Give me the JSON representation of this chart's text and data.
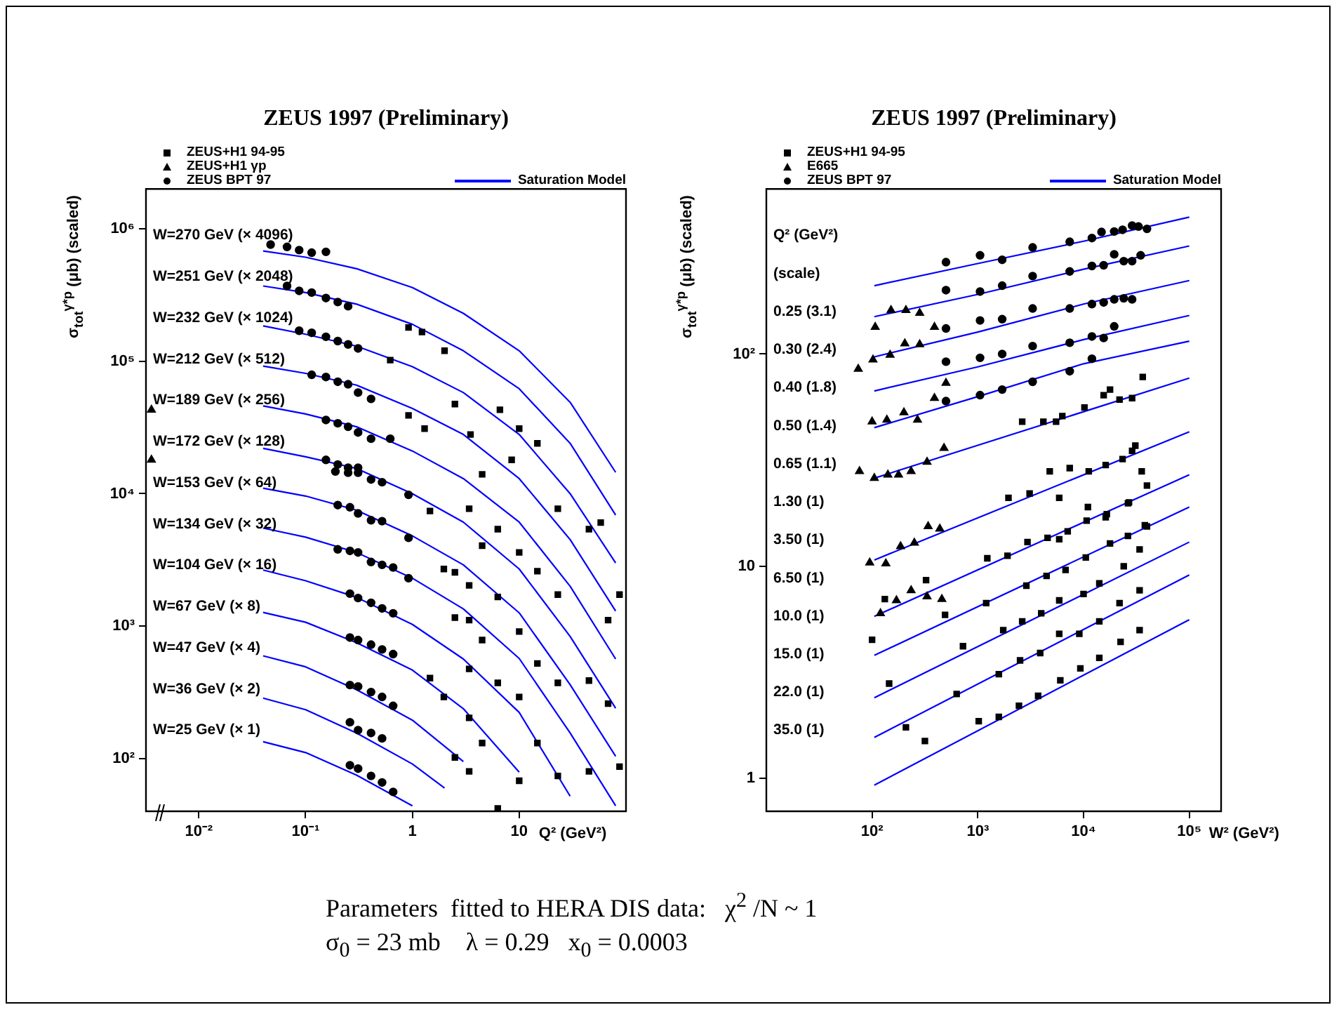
{
  "chart_data": [
    {
      "type": "scatter",
      "title": "ZEUS 1997 (Preliminary)",
      "xlabel": "Q² (GeV²)",
      "ylabel": "σ$_{tot}$$^{γ*p}$ (μb) (scaled)",
      "log": "xy",
      "legend": "top",
      "xlim": [
        0.0032,
        100
      ],
      "ylim": [
        40,
        2000000
      ],
      "xticks": [
        {
          "value": 0.01,
          "label": "10⁻²"
        },
        {
          "value": 0.1,
          "label": "10⁻¹"
        },
        1,
        10
      ],
      "yticks": [
        {
          "value": 100,
          "label": "10²"
        },
        {
          "value": 1000,
          "label": "10³"
        },
        {
          "value": 10000,
          "label": "10⁴"
        },
        {
          "value": 100000,
          "label": "10⁵"
        },
        {
          "value": 1000000,
          "label": "10⁶"
        }
      ],
      "annotations": [
        "W=270 GeV (× 4096)",
        "W=251 GeV (× 2048)",
        "W=232 GeV (× 1024)",
        "W=212 GeV (× 512)",
        "W=189 GeV (× 256)",
        "W=172 GeV (× 128)",
        "W=153 GeV (× 64)",
        "W=134 GeV (× 32)",
        "W=104 GeV (× 16)",
        "W=67 GeV (× 8)",
        "W=47 GeV (× 4)",
        "W=36 GeV (× 2)",
        "W=25 GeV (× 1)"
      ],
      "series": [
        {
          "type": "scatter",
          "name": "ZEUS+H1 94-95",
          "color": "#000000",
          "marker": "square",
          "x": [
            1.46,
            1.97,
            2.5,
            2.5,
            1.46,
            1.97,
            2.5,
            3.4,
            3.4,
            3.4,
            3.4,
            3.4,
            3.4,
            4.5,
            4.5,
            4.5,
            4.5,
            6.3,
            6.3,
            6.3,
            6.3,
            10,
            10,
            10,
            10,
            14.8,
            14.8,
            14.8,
            23,
            23,
            23,
            23,
            45,
            45,
            45,
            58,
            68,
            68,
            87,
            87,
            0.92,
            1.23,
            2,
            0.62,
            0.92,
            1.3,
            2.5,
            3.5,
            6.6,
            10,
            14.8,
            8.5
          ],
          "values": [
            7400,
            2700,
            2550,
            1160,
            405,
            292,
            102,
            80,
            203,
            475,
            1110,
            2030,
            7700,
            14000,
            4050,
            785,
            131,
            373,
            1660,
            5400,
            42,
            292,
            910,
            3600,
            68,
            2600,
            523,
            131,
            7700,
            1730,
            373,
            74,
            5400,
            388,
            80,
            6050,
            1110,
            260,
            1730,
            87,
            180000,
            166000,
            120000,
            102000,
            39000,
            31000,
            47500,
            28000,
            43000,
            31000,
            24000,
            18000
          ]
        },
        {
          "type": "scatter",
          "name": "ZEUS+H1 γp",
          "color": "#000000",
          "marker": "triangle",
          "x": [
            0.0036,
            0.0036
          ],
          "values": [
            43000,
            18000
          ]
        },
        {
          "type": "scatter",
          "name": "ZEUS BPT 97",
          "color": "#000000",
          "marker": "circle",
          "x": [
            0.047,
            0.067,
            0.087,
            0.114,
            0.155,
            0.067,
            0.087,
            0.114,
            0.155,
            0.2,
            0.25,
            0.087,
            0.114,
            0.155,
            0.2,
            0.25,
            0.31,
            0.114,
            0.155,
            0.2,
            0.25,
            0.31,
            0.41,
            0.155,
            0.2,
            0.25,
            0.31,
            0.41,
            0.62,
            0.155,
            0.2,
            0.25,
            0.31,
            0.19,
            0.25,
            0.31,
            0.41,
            0.52,
            0.2,
            0.26,
            0.31,
            0.41,
            0.52,
            0.2,
            0.26,
            0.31,
            0.41,
            0.52,
            0.66,
            0.26,
            0.31,
            0.41,
            0.52,
            0.66,
            0.26,
            0.31,
            0.41,
            0.52,
            0.66,
            0.26,
            0.31,
            0.41,
            0.52,
            0.66,
            0.26,
            0.31,
            0.41,
            0.52,
            0.26,
            0.31,
            0.41,
            0.52,
            0.66,
            0.92,
            0.92,
            0.92
          ],
          "values": [
            760000,
            730000,
            690000,
            660000,
            670000,
            370000,
            340000,
            330000,
            300000,
            280000,
            260000,
            170000,
            164000,
            153000,
            142000,
            134000,
            125000,
            79000,
            76000,
            70000,
            67000,
            58000,
            52000,
            36000,
            34000,
            32000,
            29000,
            26000,
            26000,
            18000,
            16600,
            15700,
            15700,
            14700,
            14400,
            14400,
            12800,
            12200,
            8200,
            7900,
            7100,
            6300,
            6200,
            3800,
            3700,
            3600,
            3050,
            2900,
            2770,
            1760,
            1630,
            1500,
            1360,
            1250,
            820,
            785,
            725,
            667,
            615,
            359,
            350,
            318,
            292,
            250,
            188,
            164,
            156,
            142,
            89,
            84,
            74,
            66,
            56,
            9800,
            4640,
            2300
          ]
        },
        {
          "type": "line",
          "name": "Saturation Model",
          "color": "#0000ff",
          "marker": "none",
          "x": [
            0.04,
            0.1,
            0.3,
            1,
            3,
            10,
            30,
            80
          ],
          "values": [
            680000,
            610000,
            500000,
            360000,
            230000,
            120000,
            49000,
            14500
          ]
        },
        {
          "type": "line",
          "color": "#0000ff",
          "marker": "none",
          "x": [
            0.04,
            0.1,
            0.3,
            1,
            3,
            10,
            30,
            80
          ],
          "values": [
            370000,
            330000,
            270000,
            190000,
            120000,
            62000,
            24000,
            6900
          ]
        },
        {
          "type": "line",
          "color": "#0000ff",
          "marker": "none",
          "x": [
            0.04,
            0.1,
            0.3,
            1,
            3,
            10,
            30,
            80
          ],
          "values": [
            185000,
            160000,
            130000,
            91000,
            58000,
            28000,
            10000,
            3000
          ]
        },
        {
          "type": "line",
          "color": "#0000ff",
          "marker": "none",
          "x": [
            0.04,
            0.1,
            0.3,
            1,
            3,
            10,
            30,
            80
          ],
          "values": [
            92000,
            81000,
            66000,
            44000,
            28000,
            13000,
            4500,
            1300
          ]
        },
        {
          "type": "line",
          "color": "#0000ff",
          "marker": "none",
          "x": [
            0.04,
            0.1,
            0.3,
            1,
            3,
            10,
            30,
            80
          ],
          "values": [
            46000,
            40000,
            32000,
            21000,
            13000,
            6100,
            2000,
            565
          ]
        },
        {
          "type": "line",
          "color": "#0000ff",
          "marker": "none",
          "x": [
            0.04,
            0.1,
            0.3,
            1,
            3,
            10,
            30,
            80
          ],
          "values": [
            22000,
            19000,
            15500,
            10000,
            6100,
            2700,
            836,
            240
          ]
        },
        {
          "type": "line",
          "color": "#0000ff",
          "marker": "none",
          "x": [
            0.04,
            0.1,
            0.3,
            1,
            3,
            10,
            30,
            80
          ],
          "values": [
            11000,
            9600,
            7500,
            4800,
            2900,
            1260,
            361,
            104
          ]
        },
        {
          "type": "line",
          "color": "#0000ff",
          "marker": "none",
          "x": [
            0.04,
            0.1,
            0.3,
            1,
            3,
            10,
            30,
            80
          ],
          "values": [
            5500,
            4700,
            3600,
            2300,
            1350,
            570,
            156,
            44
          ]
        },
        {
          "type": "line",
          "color": "#0000ff",
          "marker": "none",
          "x": [
            0.04,
            0.1,
            0.3,
            1,
            3,
            10,
            30
          ],
          "values": [
            2650,
            2200,
            1650,
            1030,
            565,
            223,
            52
          ]
        },
        {
          "type": "line",
          "color": "#0000ff",
          "marker": "none",
          "x": [
            0.04,
            0.1,
            0.3,
            1,
            3,
            10
          ],
          "values": [
            1270,
            1070,
            750,
            466,
            238,
            79
          ]
        },
        {
          "type": "line",
          "color": "#0000ff",
          "marker": "none",
          "x": [
            0.04,
            0.1,
            0.3,
            1,
            3
          ],
          "values": [
            597,
            493,
            331,
            195,
            95
          ]
        },
        {
          "type": "line",
          "color": "#0000ff",
          "marker": "none",
          "x": [
            0.04,
            0.1,
            0.3,
            1,
            2
          ],
          "values": [
            286,
            234,
            156,
            91,
            60
          ]
        },
        {
          "type": "line",
          "color": "#0000ff",
          "marker": "none",
          "x": [
            0.04,
            0.1,
            0.3,
            1
          ],
          "values": [
            134,
            111,
            75,
            44
          ]
        }
      ]
    },
    {
      "type": "scatter",
      "title": "ZEUS 1997 (Preliminary)",
      "xlabel": "W² (GeV²)",
      "ylabel": "σ$_{tot}$$^{γ*p}$ (μb) (scaled)",
      "log": "xy",
      "legend": "top",
      "xlim": [
        10,
        200000
      ],
      "ylim": [
        0.7,
        600
      ],
      "xticks": [
        {
          "value": 100,
          "label": "10²"
        },
        {
          "value": 1000,
          "label": "10³"
        },
        {
          "value": 10000,
          "label": "10⁴"
        },
        {
          "value": 100000,
          "label": "10⁵"
        }
      ],
      "yticks": [
        1,
        10,
        {
          "value": 100,
          "label": "10²"
        }
      ],
      "annotations": [
        "Q² (GeV²)",
        "(scale)",
        "0.25 (3.1)",
        "0.30 (2.4)",
        "0.40 (1.8)",
        "0.50 (1.4)",
        "0.65 (1.1)",
        "1.30 (1)",
        "3.50 (1)",
        "6.50 (1)",
        "10.0 (1)",
        "15.0 (1)",
        "22.0 (1)",
        "35.0 (1)"
      ],
      "series": [
        {
          "type": "scatter",
          "name": "ZEUS+H1 94-95",
          "color": "#000000",
          "marker": "square",
          "x": [
            2630,
            4170,
            5500,
            6300,
            10200,
            15500,
            17800,
            21900,
            28800,
            36300,
            4790,
            7400,
            11200,
            16200,
            23400,
            28800,
            30900,
            35500,
            1950,
            3090,
            5890,
            11000,
            16200,
            26900,
            39800,
            1230,
            1910,
            2950,
            4570,
            5890,
            7080,
            10700,
            16600,
            26300,
            39800,
            132,
            324,
            490,
            1200,
            2880,
            4470,
            6760,
            10500,
            17800,
            26300,
            38000,
            100,
            724,
            1740,
            2630,
            3980,
            5890,
            10000,
            14100,
            24000,
            33900,
            145,
            631,
            1580,
            2510,
            3890,
            5890,
            9120,
            14100,
            21900,
            33900,
            209,
            316,
            1020,
            1580,
            2450,
            3720,
            6030,
            9330,
            14100,
            22400,
            33900
          ],
          "values": [
            48,
            48,
            48,
            51,
            56,
            64,
            68,
            61,
            62,
            78,
            28,
            29,
            28,
            30,
            32,
            35,
            37,
            28,
            21,
            22,
            21,
            19,
            17,
            20,
            24,
            10.9,
            11.2,
            13,
            13.6,
            13.4,
            14.6,
            16.4,
            17.6,
            19.8,
            15.4,
            7,
            8.6,
            5.9,
            6.7,
            8.1,
            9,
            9.6,
            11,
            12.8,
            13.9,
            15.6,
            4.5,
            4.2,
            5,
            5.5,
            6,
            6.9,
            7.4,
            8.3,
            10,
            12,
            2.8,
            2.5,
            3.1,
            3.6,
            3.9,
            4.8,
            4.8,
            5.5,
            6.7,
            7.7,
            1.74,
            1.5,
            1.86,
            1.95,
            2.2,
            2.45,
            2.9,
            3.3,
            3.7,
            4.4,
            5
          ]
        },
        {
          "type": "scatter",
          "name": "E665",
          "color": "#000000",
          "marker": "triangle",
          "x": [
            107,
            151,
            209,
            282,
            389,
            74,
            102,
            148,
            204,
            282,
            100,
            138,
            200,
            269,
            389,
            500,
            76,
            105,
            141,
            178,
            234,
            331,
            479,
            339,
            437,
            251,
            186,
            95,
            135,
            120,
            170,
            234,
            331,
            457
          ],
          "values": [
            134,
            161,
            161,
            156,
            134,
            85,
            94,
            99,
            112,
            111,
            48,
            49,
            53,
            49,
            62,
            73,
            28,
            26,
            27,
            27,
            28,
            31,
            36,
            15.4,
            15,
            12.9,
            12.4,
            10.4,
            10.3,
            6,
            6.9,
            7.7,
            7.2,
            7
          ]
        },
        {
          "type": "scatter",
          "name": "ZEUS BPT 97",
          "color": "#000000",
          "marker": "circle",
          "x": [
            500,
            1050,
            1700,
            3300,
            7400,
            12000,
            14800,
            19500,
            23400,
            28800,
            33100,
            39800,
            500,
            1050,
            1700,
            3300,
            7400,
            12000,
            15500,
            19500,
            24000,
            28800,
            34700,
            500,
            1050,
            1700,
            3300,
            7400,
            12000,
            15500,
            19500,
            24000,
            28800,
            500,
            1050,
            1700,
            3300,
            7400,
            12000,
            15500,
            19500,
            500,
            1050,
            1700,
            3300,
            7400,
            12000
          ],
          "values": [
            271,
            292,
            278,
            318,
            338,
            352,
            376,
            378,
            385,
            403,
            399,
            389,
            200,
            197,
            210,
            233,
            245,
            260,
            262,
            295,
            274,
            274,
            292,
            132,
            144,
            146,
            164,
            164,
            172,
            175,
            181,
            183,
            181,
            92,
            96,
            100,
            109,
            113,
            121,
            119,
            135,
            60,
            64,
            68,
            74,
            83,
            95
          ]
        },
        {
          "type": "line",
          "name": "Saturation Model",
          "color": "#0000ff",
          "marker": "none",
          "x": [
            105,
            1000,
            10000,
            100000
          ],
          "values": [
            210,
            267,
            340,
            442
          ]
        },
        {
          "type": "line",
          "color": "#0000ff",
          "marker": "none",
          "x": [
            105,
            1000,
            10000,
            100000
          ],
          "values": [
            150,
            191,
            251,
            323
          ]
        },
        {
          "type": "line",
          "color": "#0000ff",
          "marker": "none",
          "x": [
            105,
            1000,
            10000,
            100000
          ],
          "values": [
            97,
            127,
            172,
            222
          ]
        },
        {
          "type": "line",
          "color": "#0000ff",
          "marker": "none",
          "x": [
            105,
            1000,
            10000,
            100000
          ],
          "values": [
            67,
            87,
            117,
            152
          ]
        },
        {
          "type": "line",
          "color": "#0000ff",
          "marker": "none",
          "x": [
            105,
            1000,
            10000,
            100000
          ],
          "values": [
            45,
            63,
            90,
            115
          ]
        },
        {
          "type": "line",
          "color": "#0000ff",
          "marker": "none",
          "x": [
            105,
            100000
          ],
          "values": [
            26,
            77
          ]
        },
        {
          "type": "line",
          "color": "#0000ff",
          "marker": "none",
          "x": [
            105,
            100000
          ],
          "values": [
            10.7,
            43
          ]
        },
        {
          "type": "line",
          "color": "#0000ff",
          "marker": "none",
          "x": [
            105,
            100000
          ],
          "values": [
            5.8,
            27
          ]
        },
        {
          "type": "line",
          "color": "#0000ff",
          "marker": "none",
          "x": [
            105,
            100000
          ],
          "values": [
            3.8,
            19
          ]
        },
        {
          "type": "line",
          "color": "#0000ff",
          "marker": "none",
          "x": [
            105,
            100000
          ],
          "values": [
            2.4,
            13
          ]
        },
        {
          "type": "line",
          "color": "#0000ff",
          "marker": "none",
          "x": [
            105,
            100000
          ],
          "values": [
            1.56,
            9.1
          ]
        },
        {
          "type": "line",
          "color": "#0000ff",
          "marker": "none",
          "x": [
            105,
            100000
          ],
          "values": [
            0.93,
            5.6
          ]
        }
      ]
    },
    {
      "type": "other",
      "annotations": [
        "Parameters  fitted to HERA DIS data:   χ$^{2}$ /N ~ 1",
        "σ$_{0}$ = 23 mb    λ = 0.29   x$_{0}$ = 0.0003"
      ]
    }
  ]
}
